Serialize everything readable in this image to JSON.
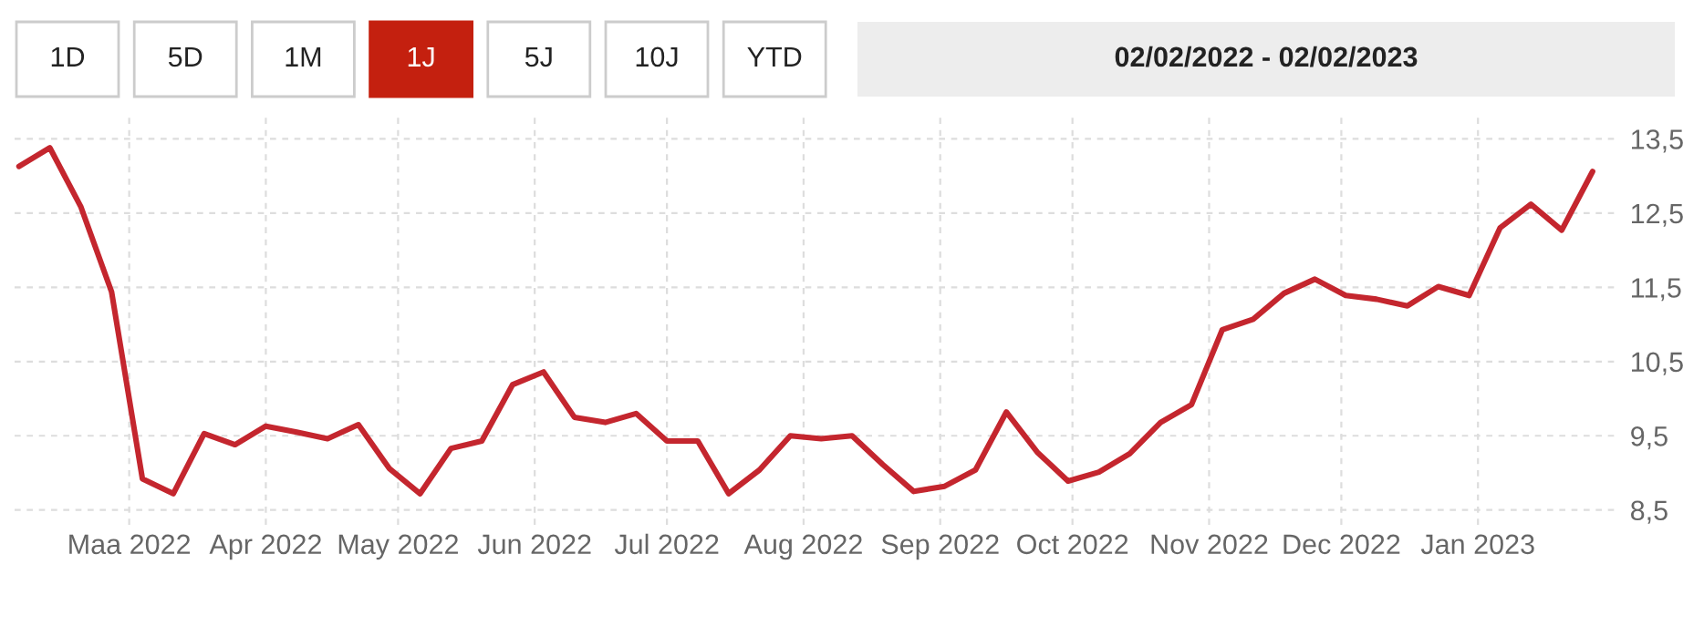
{
  "chart_data": {
    "type": "line",
    "title": "02/02/2022 - 02/02/2023",
    "annotations": [
      "1D",
      "5D",
      "1M",
      "1J",
      "5J",
      "10J",
      "YTD"
    ],
    "x": [
      "2022-02-04",
      "2022-02-11",
      "2022-02-18",
      "2022-02-25",
      "2022-03-04",
      "2022-03-11",
      "2022-03-18",
      "2022-03-25",
      "2022-04-01",
      "2022-04-08",
      "2022-04-15",
      "2022-04-22",
      "2022-04-29",
      "2022-05-06",
      "2022-05-13",
      "2022-05-20",
      "2022-05-27",
      "2022-06-03",
      "2022-06-10",
      "2022-06-17",
      "2022-06-24",
      "2022-07-01",
      "2022-07-08",
      "2022-07-15",
      "2022-07-22",
      "2022-07-29",
      "2022-08-05",
      "2022-08-12",
      "2022-08-19",
      "2022-08-26",
      "2022-09-02",
      "2022-09-09",
      "2022-09-16",
      "2022-09-23",
      "2022-09-30",
      "2022-10-07",
      "2022-10-14",
      "2022-10-21",
      "2022-10-28",
      "2022-11-04",
      "2022-11-11",
      "2022-11-18",
      "2022-11-25",
      "2022-12-02",
      "2022-12-09",
      "2022-12-16",
      "2022-12-23",
      "2022-12-30",
      "2023-01-06",
      "2023-01-13",
      "2023-01-20",
      "2023-01-27"
    ],
    "series": [
      {
        "color": "#c4262e",
        "values": [
          13.13,
          13.38,
          12.59,
          11.44,
          8.92,
          8.72,
          9.53,
          9.38,
          9.63,
          9.55,
          9.46,
          9.65,
          9.06,
          8.72,
          9.33,
          9.43,
          10.19,
          10.36,
          9.75,
          9.68,
          9.8,
          9.43,
          9.43,
          8.72,
          9.04,
          9.5,
          9.46,
          9.5,
          9.11,
          8.75,
          8.82,
          9.04,
          9.82,
          9.28,
          8.89,
          9.01,
          9.26,
          9.68,
          9.92,
          10.93,
          11.07,
          11.42,
          11.61,
          11.39,
          11.34,
          11.25,
          11.51,
          11.39,
          12.3,
          12.62,
          12.27,
          13.06
        ]
      }
    ],
    "xlim": [
      "2022-02-03",
      "2023-02-01"
    ],
    "xticks": [
      {
        "value": "2022-03-01",
        "label": "Maa 2022"
      },
      {
        "value": "2022-04-01",
        "label": "Apr 2022"
      },
      {
        "value": "2022-05-01",
        "label": "May 2022"
      },
      {
        "value": "2022-06-01",
        "label": "Jun 2022"
      },
      {
        "value": "2022-07-01",
        "label": "Jul 2022"
      },
      {
        "value": "2022-08-01",
        "label": "Aug 2022"
      },
      {
        "value": "2022-09-01",
        "label": "Sep 2022"
      },
      {
        "value": "2022-10-01",
        "label": "Oct 2022"
      },
      {
        "value": "2022-11-01",
        "label": "Nov 2022"
      },
      {
        "value": "2022-12-01",
        "label": "Dec 2022"
      },
      {
        "value": "2023-01-01",
        "label": "Jan 2023"
      }
    ],
    "ylim": [
      8.3,
      13.8
    ],
    "yticks": [
      {
        "value": 8.5,
        "label": "8,5"
      },
      {
        "value": 9.5,
        "label": "9,5"
      },
      {
        "value": 10.5,
        "label": "10,5"
      },
      {
        "value": 11.5,
        "label": "11,5"
      },
      {
        "value": 12.5,
        "label": "12,5"
      },
      {
        "value": 13.5,
        "label": "13,5"
      }
    ],
    "grid": true,
    "marker": "none",
    "line_style": "solid"
  }
}
